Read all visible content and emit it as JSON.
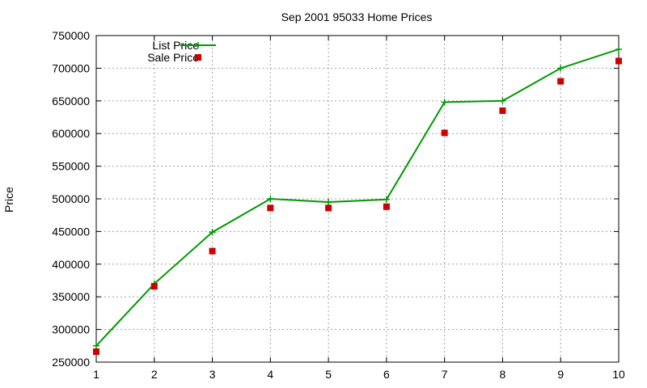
{
  "chart_data": {
    "type": "line",
    "title": "Sep 2001 95033 Home Prices",
    "xlabel": "",
    "ylabel": "Price",
    "x": [
      1,
      2,
      3,
      4,
      5,
      6,
      7,
      8,
      9,
      10
    ],
    "xlim": [
      1,
      10
    ],
    "ylim": [
      250000,
      750000
    ],
    "x_ticks": [
      1,
      2,
      3,
      4,
      5,
      6,
      7,
      8,
      9,
      10
    ],
    "y_ticks": [
      250000,
      300000,
      350000,
      400000,
      450000,
      500000,
      550000,
      600000,
      650000,
      700000,
      750000
    ],
    "grid": true,
    "legend_position": "top-left",
    "series": [
      {
        "name": "List Price",
        "style": "linespoints",
        "marker": "plus",
        "color": "#009900",
        "values": [
          275000,
          370000,
          449000,
          500000,
          495000,
          499000,
          648000,
          650000,
          700000,
          729000
        ]
      },
      {
        "name": "Sale Price",
        "style": "points",
        "marker": "square",
        "color": "#cc0000",
        "values": [
          266000,
          366000,
          420000,
          486000,
          486000,
          488000,
          601000,
          635000,
          680000,
          711000
        ]
      }
    ]
  }
}
